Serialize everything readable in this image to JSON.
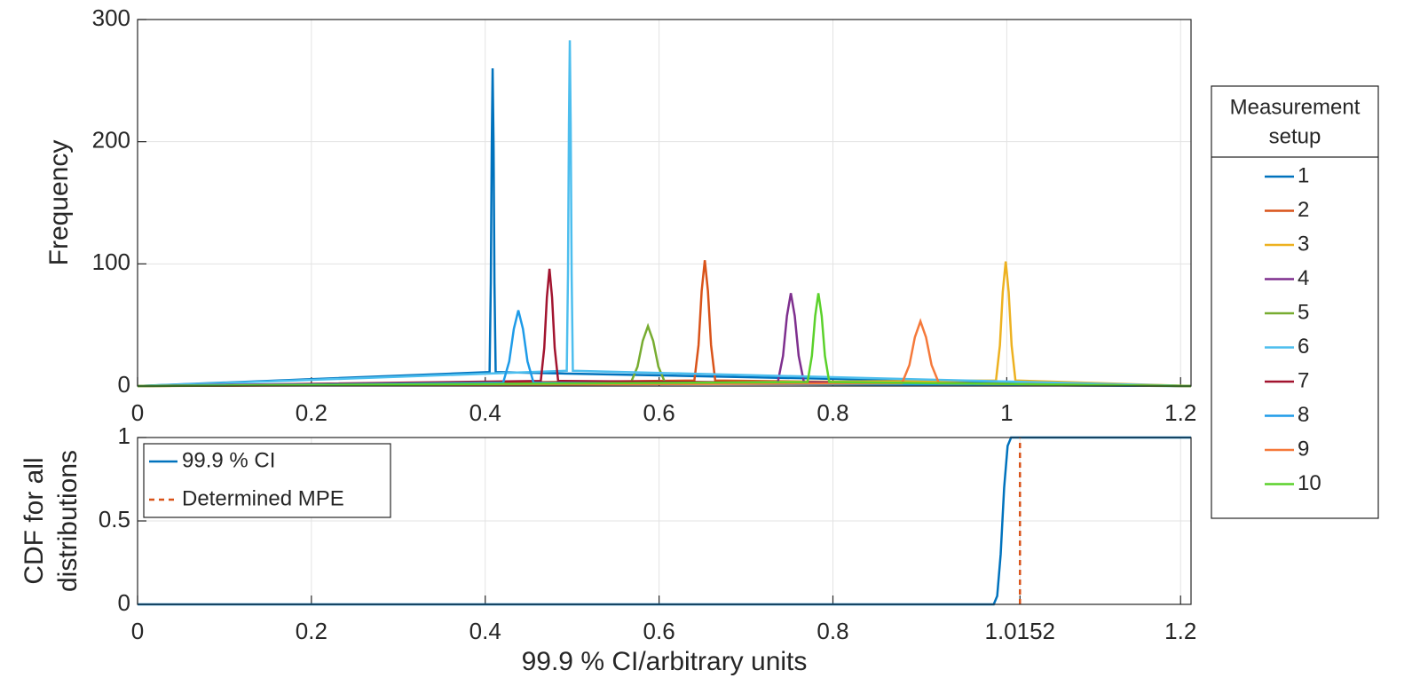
{
  "chart_data": [
    {
      "type": "line",
      "ylabel": "Frequency",
      "xlim": [
        0,
        1.212
      ],
      "ylim": [
        0,
        300
      ],
      "xticks": [
        0,
        0.2,
        0.4,
        0.6,
        0.8,
        1,
        1.2
      ],
      "yticks": [
        0,
        100,
        200,
        300
      ],
      "grid": true,
      "legend_title": [
        "Measurement",
        "setup"
      ],
      "legend": "outside-right",
      "series": [
        {
          "name": "1",
          "color": "#0072BD",
          "x": [
            0,
            0.405,
            0.4064,
            0.4075,
            0.4085,
            0.4096,
            0.4106,
            0.412,
            1.212
          ],
          "values": [
            0,
            11.4,
            84.5,
            196.3,
            260,
            196.3,
            84.5,
            11.4,
            0
          ]
        },
        {
          "name": "2",
          "color": "#D95319",
          "x": [
            0,
            0.6406,
            0.6454,
            0.649,
            0.6526,
            0.6562,
            0.6598,
            0.6646,
            1.212
          ],
          "values": [
            0,
            4.5,
            33.5,
            77.8,
            103,
            77.8,
            33.5,
            4.5,
            0
          ]
        },
        {
          "name": "3",
          "color": "#EDB120",
          "x": [
            0,
            0.9876,
            0.9921,
            0.9954,
            0.9988,
            1.0022,
            1.0056,
            1.01,
            1.212
          ],
          "values": [
            0,
            4.5,
            33.2,
            77,
            102,
            77,
            33.2,
            4.5,
            0
          ]
        },
        {
          "name": "4",
          "color": "#7E2F8E",
          "x": [
            0,
            0.7366,
            0.7426,
            0.7471,
            0.7516,
            0.7561,
            0.7606,
            0.7666,
            1.212
          ],
          "values": [
            0,
            3.3,
            24.7,
            57.4,
            76,
            57.4,
            24.7,
            3.3,
            0
          ]
        },
        {
          "name": "5",
          "color": "#77AC30",
          "x": [
            0,
            0.5672,
            0.5752,
            0.5812,
            0.5872,
            0.5932,
            0.5992,
            0.6072,
            1.212
          ],
          "values": [
            0,
            2.2,
            15.9,
            37,
            49,
            37,
            15.9,
            2.2,
            0
          ]
        },
        {
          "name": "6",
          "color": "#4DBEEE",
          "x": [
            0,
            0.4938,
            0.4952,
            0.4963,
            0.4973,
            0.4983,
            0.4994,
            0.5008,
            1.212
          ],
          "values": [
            0,
            12.5,
            92,
            213.7,
            283,
            213.7,
            92,
            12.5,
            0
          ]
        },
        {
          "name": "7",
          "color": "#A2142F",
          "x": [
            0,
            0.4639,
            0.4679,
            0.4709,
            0.4739,
            0.4769,
            0.4799,
            0.4839,
            1.212
          ],
          "values": [
            0,
            4.2,
            31.2,
            72.5,
            96,
            72.5,
            31.2,
            4.2,
            0
          ]
        },
        {
          "name": "8",
          "color": "#1E9BE8",
          "x": [
            0,
            0.4206,
            0.4276,
            0.4329,
            0.4381,
            0.4434,
            0.4486,
            0.4556,
            1.212
          ],
          "values": [
            0,
            2.7,
            20.2,
            46.8,
            62,
            46.8,
            20.2,
            2.7,
            0
          ]
        },
        {
          "name": "9",
          "color": "#F5793A",
          "x": [
            0,
            0.8795,
            0.888,
            0.8943,
            0.9007,
            0.9071,
            0.9135,
            0.922,
            1.212
          ],
          "values": [
            0,
            2.3,
            17.2,
            40,
            53,
            40,
            17.2,
            2.3,
            0
          ]
        },
        {
          "name": "10",
          "color": "#5BD12B",
          "x": [
            0,
            0.7708,
            0.7758,
            0.7796,
            0.7833,
            0.7871,
            0.7908,
            0.7958,
            1.212
          ],
          "values": [
            0,
            3.3,
            24.7,
            57.4,
            76,
            57.4,
            24.7,
            3.3,
            0
          ]
        }
      ]
    },
    {
      "type": "line",
      "ylabel": [
        "CDF for all",
        "distributions"
      ],
      "xlabel": "99.9 % CI/arbitrary units",
      "xlim": [
        0,
        1.212
      ],
      "ylim": [
        0,
        1
      ],
      "xticks": [
        0,
        0.2,
        0.4,
        0.6,
        0.8,
        1.0152,
        1.2
      ],
      "yticks": [
        0,
        0.5,
        1
      ],
      "grid": true,
      "legend": "upper-left",
      "series": [
        {
          "name": "99.9 % CI",
          "color": "#0072BD",
          "linestyle": "solid",
          "x": [
            0,
            0.985,
            0.989,
            0.993,
            0.997,
            1.001,
            1.005,
            1.212
          ],
          "values": [
            0,
            0,
            0.05,
            0.3,
            0.7,
            0.95,
            1,
            1
          ]
        },
        {
          "name": "Determined MPE",
          "color": "#D95319",
          "linestyle": "dashed",
          "x": [
            1.0152,
            1.0152
          ],
          "values": [
            0,
            1
          ]
        }
      ]
    }
  ]
}
